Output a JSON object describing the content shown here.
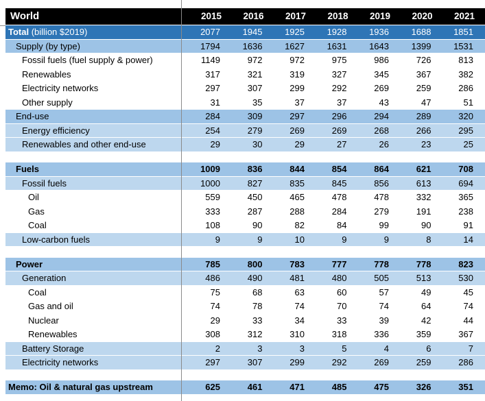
{
  "table": {
    "corner_label": "World",
    "years": [
      "2015",
      "2016",
      "2017",
      "2018",
      "2019",
      "2020",
      "2021"
    ],
    "rows": [
      {
        "label": "Total",
        "suffix": " (billion $2019)",
        "style": "total",
        "indent": 0,
        "values": [
          "2077",
          "1945",
          "1925",
          "1928",
          "1936",
          "1688",
          "1851"
        ]
      },
      {
        "label": "Supply (by type)",
        "style": "section",
        "indent": 1,
        "values": [
          "1794",
          "1636",
          "1627",
          "1631",
          "1643",
          "1399",
          "1531"
        ]
      },
      {
        "label": "Fossil fuels (fuel supply & power)",
        "style": "plain",
        "indent": 2,
        "values": [
          "1149",
          "972",
          "972",
          "975",
          "986",
          "726",
          "813"
        ]
      },
      {
        "label": "Renewables",
        "style": "plain",
        "indent": 2,
        "values": [
          "317",
          "321",
          "319",
          "327",
          "345",
          "367",
          "382"
        ]
      },
      {
        "label": "Electricity networks",
        "style": "plain",
        "indent": 2,
        "values": [
          "297",
          "307",
          "299",
          "292",
          "269",
          "259",
          "286"
        ]
      },
      {
        "label": "Other supply",
        "style": "plain",
        "indent": 2,
        "values": [
          "31",
          "35",
          "37",
          "37",
          "43",
          "47",
          "51"
        ]
      },
      {
        "label": "End-use",
        "style": "section",
        "indent": 1,
        "values": [
          "284",
          "309",
          "297",
          "296",
          "294",
          "289",
          "320"
        ]
      },
      {
        "label": "Energy efficiency",
        "style": "sub",
        "indent": 2,
        "values": [
          "254",
          "279",
          "269",
          "269",
          "268",
          "266",
          "295"
        ]
      },
      {
        "label": "Renewables and other end-use",
        "style": "sub",
        "indent": 2,
        "values": [
          "29",
          "30",
          "29",
          "27",
          "26",
          "23",
          "25"
        ]
      },
      {
        "style": "gap"
      },
      {
        "label": "Fuels",
        "style": "section-bold",
        "indent": 1,
        "values": [
          "1009",
          "836",
          "844",
          "854",
          "864",
          "621",
          "708"
        ]
      },
      {
        "label": "Fossil fuels",
        "style": "sub",
        "indent": 2,
        "values": [
          "1000",
          "827",
          "835",
          "845",
          "856",
          "613",
          "694"
        ]
      },
      {
        "label": "Oil",
        "style": "plain",
        "indent": 3,
        "values": [
          "559",
          "450",
          "465",
          "478",
          "478",
          "332",
          "365"
        ]
      },
      {
        "label": "Gas",
        "style": "plain",
        "indent": 3,
        "values": [
          "333",
          "287",
          "288",
          "284",
          "279",
          "191",
          "238"
        ]
      },
      {
        "label": "Coal",
        "style": "plain",
        "indent": 3,
        "values": [
          "108",
          "90",
          "82",
          "84",
          "99",
          "90",
          "91"
        ]
      },
      {
        "label": "Low-carbon fuels",
        "style": "sub",
        "indent": 2,
        "values": [
          "9",
          "9",
          "10",
          "9",
          "9",
          "8",
          "14"
        ]
      },
      {
        "style": "gap"
      },
      {
        "label": "Power",
        "style": "section-bold",
        "indent": 1,
        "values": [
          "785",
          "800",
          "783",
          "777",
          "778",
          "778",
          "823"
        ]
      },
      {
        "label": "Generation",
        "style": "sub",
        "indent": 2,
        "values": [
          "486",
          "490",
          "481",
          "480",
          "505",
          "513",
          "530"
        ]
      },
      {
        "label": "Coal",
        "style": "plain",
        "indent": 3,
        "values": [
          "75",
          "68",
          "63",
          "60",
          "57",
          "49",
          "45"
        ]
      },
      {
        "label": "Gas and oil",
        "style": "plain",
        "indent": 3,
        "values": [
          "74",
          "78",
          "74",
          "70",
          "74",
          "64",
          "74"
        ]
      },
      {
        "label": "Nuclear",
        "style": "plain",
        "indent": 3,
        "values": [
          "29",
          "33",
          "34",
          "33",
          "39",
          "42",
          "44"
        ]
      },
      {
        "label": "Renewables",
        "style": "plain",
        "indent": 3,
        "values": [
          "308",
          "312",
          "310",
          "318",
          "336",
          "359",
          "367"
        ]
      },
      {
        "label": "Battery Storage",
        "style": "sub",
        "indent": 2,
        "values": [
          "2",
          "3",
          "3",
          "5",
          "4",
          "6",
          "7"
        ]
      },
      {
        "label": "Electricity networks",
        "style": "sub",
        "indent": 2,
        "values": [
          "297",
          "307",
          "299",
          "292",
          "269",
          "259",
          "286"
        ]
      },
      {
        "style": "gap"
      },
      {
        "label": "Memo: Oil & natural gas upstream",
        "style": "section-bold",
        "indent": 0,
        "values": [
          "625",
          "461",
          "471",
          "485",
          "475",
          "326",
          "351"
        ]
      }
    ]
  },
  "colors": {
    "header_bg": "#000000",
    "header_text": "#ffffff",
    "total_row_bg": "#2E75B6",
    "total_row_text": "#ffffff",
    "section_row_bg": "#9DC3E6",
    "subsection_row_bg": "#BDD7EE",
    "body_text": "#000000",
    "gridline": "#8a8a8a"
  }
}
